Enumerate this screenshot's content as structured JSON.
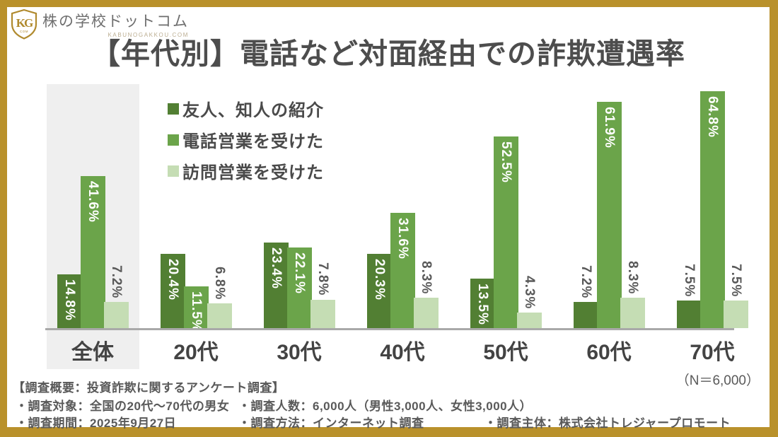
{
  "logo": {
    "brand": "株の学校ドットコム",
    "domain": "KABUNOGAKKOU.COM",
    "monogram": "KG"
  },
  "title": "【年代別】電話など対面経由での詐欺遭遇率",
  "n_label": "（N＝6,000）",
  "chart_data": {
    "type": "bar",
    "categories": [
      "全体",
      "20代",
      "30代",
      "40代",
      "50代",
      "60代",
      "70代"
    ],
    "series": [
      {
        "name": "友人、知人の紹介",
        "color": "#527F33",
        "values": [
          14.8,
          20.4,
          23.4,
          20.3,
          13.5,
          7.2,
          7.5
        ]
      },
      {
        "name": "電話営業を受けた",
        "color": "#6BA44A",
        "values": [
          41.6,
          11.5,
          22.1,
          31.6,
          52.5,
          61.9,
          64.8
        ]
      },
      {
        "name": "訪問営業を受けた",
        "color": "#C5DDB4",
        "values": [
          7.2,
          6.8,
          7.8,
          8.3,
          4.3,
          8.3,
          7.5
        ]
      }
    ],
    "unit": "%",
    "data_label_format": "{value}%",
    "highlight_category": "全体",
    "ylim": [
      0,
      70
    ],
    "grid": false,
    "legend_position": "top-left"
  },
  "footer": {
    "heading": "【調査概要：投資詐欺に関するアンケート調査】",
    "row1_col1": "・調査対象：全国の20代〜70代の男女",
    "row1_col2": "・調査人数：6,000人（男性3,000人、女性3,000人）",
    "row2_col1": "・調査期間：2025年9月27日",
    "row2_col2": "・調査方法：インターネット調査",
    "row2_col3": "・調査主体：株式会社トレジャープロモート"
  },
  "colors": {
    "frame_gold": "#B9912B",
    "highlight_band": "#EFEFEF",
    "axis_line": "#A9A9A9",
    "title_text": "#4D4D4D",
    "footer_text": "#595959"
  }
}
